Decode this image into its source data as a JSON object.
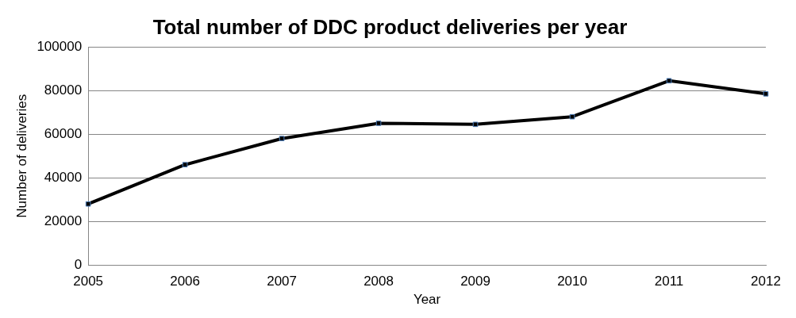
{
  "chart_data": {
    "type": "line",
    "title": "Total number of DDC product deliveries per year",
    "xlabel": "Year",
    "ylabel": "Number of deliveries",
    "categories": [
      "2005",
      "2006",
      "2007",
      "2008",
      "2009",
      "2010",
      "2011",
      "2012"
    ],
    "series": [
      {
        "color": "#000000",
        "values": [
          28000,
          46000,
          58000,
          65000,
          64500,
          68000,
          84500,
          78500
        ]
      }
    ],
    "ylim": [
      0,
      100000
    ],
    "yticks": [
      0,
      20000,
      40000,
      60000,
      80000,
      100000
    ],
    "grid": "y",
    "legend": false,
    "marker": "square",
    "line_style": "solid"
  }
}
